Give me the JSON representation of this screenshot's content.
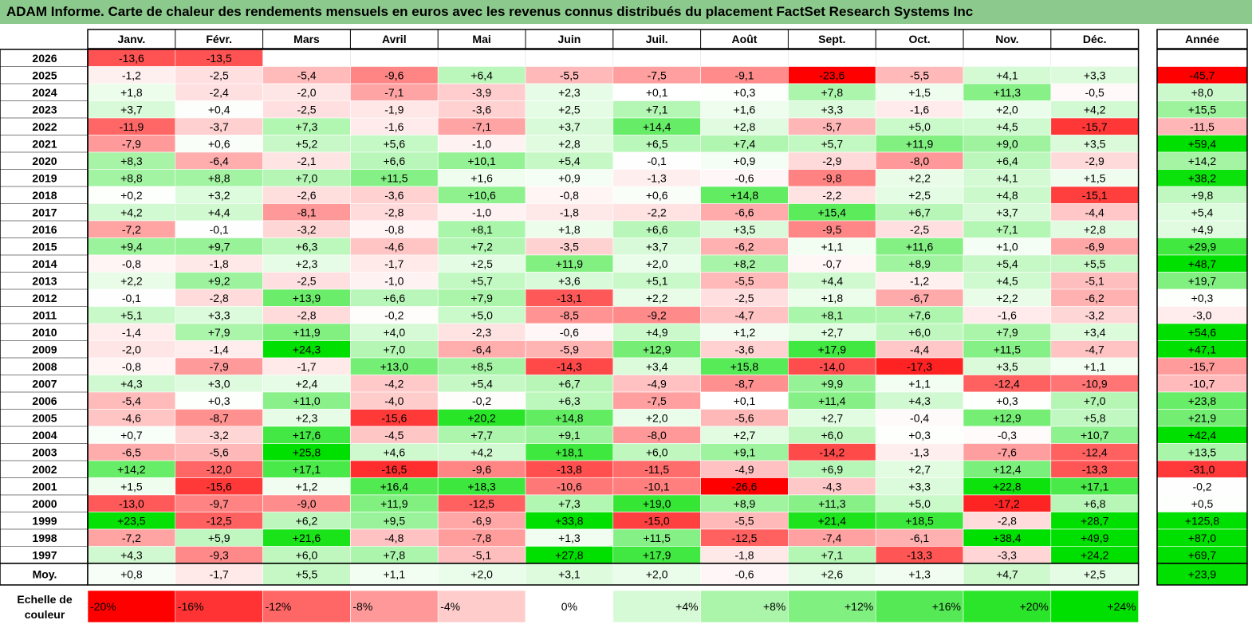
{
  "title": "ADAM Informe. Carte de chaleur des rendements mensuels en euros avec les revenus connus distribués du placement FactSet Research Systems Inc",
  "colors": {
    "title_bg": "#8cc98c",
    "negative": "#ff0000",
    "neutral": "#ffffff",
    "positive": "#00e000"
  },
  "chart_data": {
    "type": "heatmap",
    "title": "ADAM Informe. Carte de chaleur des rendements mensuels en euros avec les revenus connus distribués du placement FactSet Research Systems Inc",
    "columns": [
      "Janv.",
      "Févr.",
      "Mars",
      "Avril",
      "Mai",
      "Juin",
      "Juil.",
      "Août",
      "Sept.",
      "Oct.",
      "Nov.",
      "Déc."
    ],
    "year_label": "Année",
    "rows": [
      {
        "label": "2026",
        "values": [
          "-13,6",
          "-13,5",
          null,
          null,
          null,
          null,
          null,
          null,
          null,
          null,
          null,
          null
        ],
        "year": null
      },
      {
        "label": "2025",
        "values": [
          "-1,2",
          "-2,5",
          "-5,4",
          "-9,6",
          "+6,4",
          "-5,5",
          "-7,5",
          "-9,1",
          "-23,6",
          "-5,5",
          "+4,1",
          "+3,3"
        ],
        "year": "-45,7"
      },
      {
        "label": "2024",
        "values": [
          "+1,8",
          "-2,4",
          "-2,0",
          "-7,1",
          "-3,9",
          "+2,3",
          "+0,1",
          "+0,3",
          "+7,8",
          "+1,5",
          "+11,3",
          "-0,5"
        ],
        "year": "+8,0"
      },
      {
        "label": "2023",
        "values": [
          "+3,7",
          "+0,4",
          "-2,5",
          "-1,9",
          "-3,6",
          "+2,5",
          "+7,1",
          "+1,6",
          "+3,3",
          "-1,6",
          "+2,0",
          "+4,2"
        ],
        "year": "+15,5"
      },
      {
        "label": "2022",
        "values": [
          "-11,9",
          "-3,7",
          "+7,3",
          "-1,6",
          "-7,1",
          "+3,7",
          "+14,4",
          "+2,8",
          "-5,7",
          "+5,0",
          "+4,5",
          "-15,7"
        ],
        "year": "-11,5"
      },
      {
        "label": "2021",
        "values": [
          "-7,9",
          "+0,6",
          "+5,2",
          "+5,6",
          "-1,0",
          "+2,8",
          "+6,5",
          "+7,4",
          "+5,7",
          "+11,9",
          "+9,0",
          "+3,5"
        ],
        "year": "+59,4"
      },
      {
        "label": "2020",
        "values": [
          "+8,3",
          "-6,4",
          "-2,1",
          "+6,6",
          "+10,1",
          "+5,4",
          "-0,1",
          "+0,9",
          "-2,9",
          "-8,0",
          "+6,4",
          "-2,9"
        ],
        "year": "+14,2"
      },
      {
        "label": "2019",
        "values": [
          "+8,8",
          "+8,8",
          "+7,0",
          "+11,5",
          "+1,6",
          "+0,9",
          "-1,3",
          "-0,6",
          "-9,8",
          "+2,2",
          "+4,1",
          "+1,5"
        ],
        "year": "+38,2"
      },
      {
        "label": "2018",
        "values": [
          "+0,2",
          "+3,2",
          "-2,6",
          "-3,6",
          "+10,6",
          "-0,8",
          "+0,6",
          "+14,8",
          "-2,2",
          "+2,5",
          "+4,8",
          "-15,1"
        ],
        "year": "+9,8"
      },
      {
        "label": "2017",
        "values": [
          "+4,2",
          "+4,4",
          "-8,1",
          "-2,8",
          "-1,0",
          "-1,8",
          "-2,2",
          "-6,6",
          "+15,4",
          "+6,7",
          "+3,7",
          "-4,4"
        ],
        "year": "+5,4"
      },
      {
        "label": "2016",
        "values": [
          "-7,2",
          "-0,1",
          "-3,2",
          "-0,8",
          "+8,1",
          "+1,8",
          "+6,6",
          "+3,5",
          "-9,5",
          "-2,5",
          "+7,1",
          "+2,8"
        ],
        "year": "+4,9"
      },
      {
        "label": "2015",
        "values": [
          "+9,4",
          "+9,7",
          "+6,3",
          "-4,6",
          "+7,2",
          "-3,5",
          "+3,7",
          "-6,2",
          "+1,1",
          "+11,6",
          "+1,0",
          "-6,9"
        ],
        "year": "+29,9"
      },
      {
        "label": "2014",
        "values": [
          "-0,8",
          "-1,8",
          "+2,3",
          "-1,7",
          "+2,5",
          "+11,9",
          "+2,0",
          "+8,2",
          "-0,7",
          "+8,9",
          "+5,4",
          "+5,5"
        ],
        "year": "+48,7"
      },
      {
        "label": "2013",
        "values": [
          "+2,2",
          "+9,2",
          "-2,5",
          "-1,0",
          "+5,7",
          "+3,6",
          "+5,1",
          "-5,5",
          "+4,4",
          "-1,2",
          "+4,5",
          "-5,1"
        ],
        "year": "+19,7"
      },
      {
        "label": "2012",
        "values": [
          "-0,1",
          "-2,8",
          "+13,9",
          "+6,6",
          "+7,9",
          "-13,1",
          "+2,2",
          "-2,5",
          "+1,8",
          "-6,7",
          "+2,2",
          "-6,2"
        ],
        "year": "+0,3"
      },
      {
        "label": "2011",
        "values": [
          "+5,1",
          "+3,3",
          "-2,8",
          "-0,2",
          "+5,0",
          "-8,5",
          "-9,2",
          "-4,7",
          "+8,1",
          "+7,6",
          "-1,6",
          "-3,2"
        ],
        "year": "-3,0"
      },
      {
        "label": "2010",
        "values": [
          "-1,4",
          "+7,9",
          "+11,9",
          "+4,0",
          "-2,3",
          "-0,6",
          "+4,9",
          "+1,2",
          "+2,7",
          "+6,0",
          "+7,9",
          "+3,4"
        ],
        "year": "+54,6"
      },
      {
        "label": "2009",
        "values": [
          "-2,0",
          "-1,4",
          "+24,3",
          "+7,0",
          "-6,4",
          "-5,9",
          "+12,9",
          "-3,6",
          "+17,9",
          "-4,4",
          "+11,5",
          "-4,7"
        ],
        "year": "+47,1"
      },
      {
        "label": "2008",
        "values": [
          "-0,8",
          "-7,9",
          "-1,7",
          "+13,0",
          "+8,5",
          "-14,3",
          "+3,4",
          "+15,8",
          "-14,0",
          "-17,3",
          "+3,5",
          "+1,1"
        ],
        "year": "-15,7"
      },
      {
        "label": "2007",
        "values": [
          "+4,3",
          "+3,0",
          "+2,4",
          "-4,2",
          "+5,4",
          "+6,7",
          "-4,9",
          "-8,7",
          "+9,9",
          "+1,1",
          "-12,4",
          "-10,9"
        ],
        "year": "-10,7"
      },
      {
        "label": "2006",
        "values": [
          "-5,4",
          "+0,3",
          "+11,0",
          "-4,0",
          "-0,2",
          "+6,3",
          "-7,5",
          "+0,1",
          "+11,4",
          "+4,3",
          "+0,3",
          "+7,0"
        ],
        "year": "+23,8"
      },
      {
        "label": "2005",
        "values": [
          "-4,6",
          "-8,7",
          "+2,3",
          "-15,6",
          "+20,2",
          "+14,8",
          "+2,0",
          "-5,6",
          "+2,7",
          "-0,4",
          "+12,9",
          "+5,8"
        ],
        "year": "+21,9"
      },
      {
        "label": "2004",
        "values": [
          "+0,7",
          "-3,2",
          "+17,6",
          "-4,5",
          "+7,7",
          "+9,1",
          "-8,0",
          "+2,7",
          "+6,0",
          "+0,3",
          "-0,3",
          "+10,7"
        ],
        "year": "+42,4"
      },
      {
        "label": "2003",
        "values": [
          "-6,5",
          "-5,6",
          "+25,8",
          "+4,6",
          "+4,2",
          "+18,1",
          "+6,0",
          "+9,1",
          "-14,2",
          "-1,3",
          "-7,6",
          "-12,4"
        ],
        "year": "+13,5"
      },
      {
        "label": "2002",
        "values": [
          "+14,2",
          "-12,0",
          "+17,1",
          "-16,5",
          "-9,6",
          "-13,8",
          "-11,5",
          "-4,9",
          "+6,9",
          "+2,7",
          "+12,4",
          "-13,3"
        ],
        "year": "-31,0"
      },
      {
        "label": "2001",
        "values": [
          "+1,5",
          "-15,6",
          "+1,2",
          "+16,4",
          "+18,3",
          "-10,6",
          "-10,1",
          "-26,6",
          "-4,3",
          "+3,3",
          "+22,8",
          "+17,1"
        ],
        "year": "-0,2"
      },
      {
        "label": "2000",
        "values": [
          "-13,0",
          "-9,7",
          "-9,0",
          "+11,9",
          "-12,5",
          "+7,3",
          "+19,0",
          "+8,9",
          "+11,3",
          "+5,0",
          "-17,2",
          "+6,8"
        ],
        "year": "+0,5"
      },
      {
        "label": "1999",
        "values": [
          "+23,5",
          "-12,5",
          "+6,2",
          "+9,5",
          "-6,9",
          "+33,8",
          "-15,0",
          "-5,5",
          "+21,4",
          "+18,5",
          "-2,8",
          "+28,7"
        ],
        "year": "+125,8"
      },
      {
        "label": "1998",
        "values": [
          "-7,2",
          "+5,9",
          "+21,6",
          "-4,8",
          "-7,8",
          "+1,3",
          "+11,5",
          "-12,5",
          "-7,4",
          "-6,1",
          "+38,4",
          "+49,9"
        ],
        "year": "+87,0"
      },
      {
        "label": "1997",
        "values": [
          "+4,3",
          "-9,3",
          "+6,0",
          "+7,8",
          "-5,1",
          "+27,8",
          "+17,9",
          "-1,8",
          "+7,1",
          "-13,3",
          "-3,3",
          "+24,2"
        ],
        "year": "+69,7"
      }
    ],
    "average": {
      "label": "Moy.",
      "values": [
        "+0,8",
        "-1,7",
        "+5,5",
        "+1,1",
        "+2,0",
        "+3,1",
        "+2,0",
        "-0,6",
        "+2,6",
        "+1,3",
        "+4,7",
        "+2,5"
      ],
      "year": "+23,9"
    },
    "scale": {
      "label_line1": "Echelle de",
      "label_line2": "couleur",
      "steps": [
        "-20%",
        "-16%",
        "-12%",
        "-8%",
        "-4%",
        "0%",
        "+4%",
        "+8%",
        "+12%",
        "+16%",
        "+20%",
        "+24%"
      ]
    }
  }
}
